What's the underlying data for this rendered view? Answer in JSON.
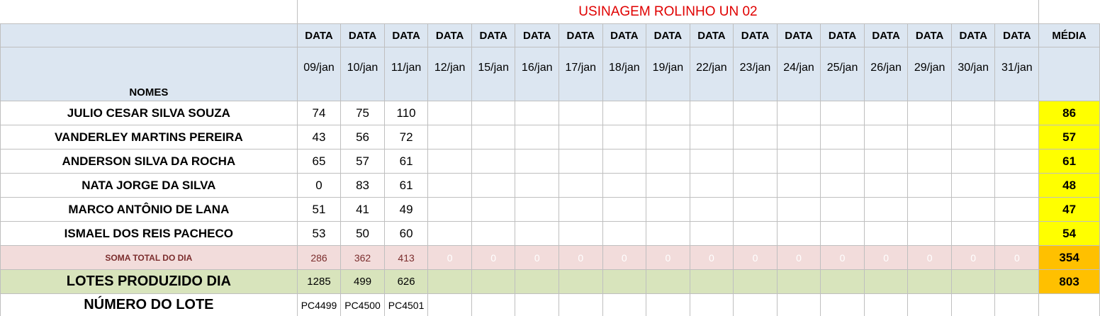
{
  "title": "USINAGEM ROLINHO UN 02",
  "header": {
    "data_label": "DATA",
    "media_label": "MÉDIA",
    "nomes_label": "NOMES",
    "dates": [
      "09/jan",
      "10/jan",
      "11/jan",
      "12/jan",
      "15/jan",
      "16/jan",
      "17/jan",
      "18/jan",
      "19/jan",
      "22/jan",
      "23/jan",
      "24/jan",
      "25/jan",
      "26/jan",
      "29/jan",
      "30/jan",
      "31/jan"
    ]
  },
  "rows": [
    {
      "name": "JULIO CESAR SILVA SOUZA",
      "values": [
        "74",
        "75",
        "110"
      ],
      "media": "86"
    },
    {
      "name": "VANDERLEY MARTINS PEREIRA",
      "values": [
        "43",
        "56",
        "72"
      ],
      "media": "57"
    },
    {
      "name": "ANDERSON SILVA DA ROCHA",
      "values": [
        "65",
        "57",
        "61"
      ],
      "media": "61"
    },
    {
      "name": "NATA JORGE DA SILVA",
      "values": [
        "0",
        "83",
        "61"
      ],
      "media": "48"
    },
    {
      "name": "MARCO ANTÔNIO DE LANA",
      "values": [
        "51",
        "41",
        "49"
      ],
      "media": "47"
    },
    {
      "name": "ISMAEL DOS REIS PACHECO",
      "values": [
        "53",
        "50",
        "60"
      ],
      "media": "54"
    }
  ],
  "soma": {
    "label": "SOMA TOTAL DO DIA",
    "values": [
      "286",
      "362",
      "413",
      "0",
      "0",
      "0",
      "0",
      "0",
      "0",
      "0",
      "0",
      "0",
      "0",
      "0",
      "0",
      "0",
      "0"
    ],
    "media": "354"
  },
  "lotes": {
    "label": "LOTES PRODUZIDO DIA",
    "values": [
      "1285",
      "499",
      "626"
    ],
    "media": "803"
  },
  "numero_lote": {
    "label": "NÚMERO DO LOTE",
    "values": [
      "PC4499",
      "PC4500",
      "PC4501"
    ]
  },
  "colors": {
    "header_bg": "#dce6f1",
    "media_bg": "#ffff00",
    "soma_bg": "#f2dcdb",
    "lotes_bg": "#d8e4bc",
    "total_bg": "#ffc000",
    "title_color": "#e00000"
  }
}
